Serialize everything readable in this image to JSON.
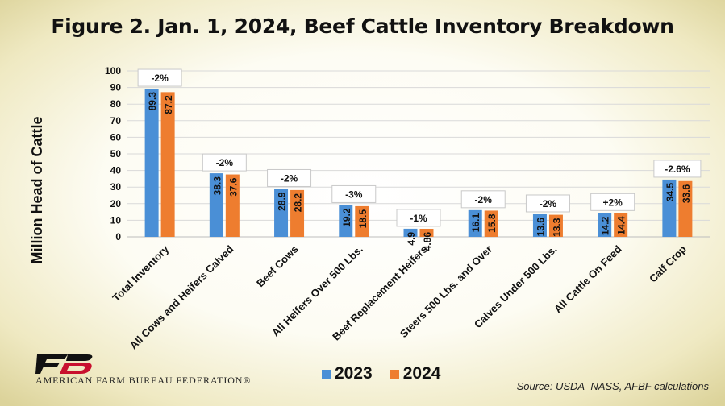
{
  "chart_data": {
    "type": "bar",
    "title": "Figure 2. Jan. 1, 2024, Beef Cattle Inventory Breakdown",
    "ylabel": "Million Head of Cattle",
    "xlabel": "",
    "ylim": [
      0,
      100
    ],
    "yticks": [
      0,
      10,
      20,
      30,
      40,
      50,
      60,
      70,
      80,
      90,
      100
    ],
    "grid": true,
    "legend_position": "bottom",
    "categories": [
      "Total Inventory",
      "All Cows and Heifers Calved",
      "Beef Cows",
      "All Heifers Over 500 Lbs.",
      "Beef Replacement Heifers",
      "Steers 500 Lbs. and Over",
      "Calves Under 500 Lbs.",
      "All Cattle On Feed",
      "Calf Crop"
    ],
    "series": [
      {
        "name": "2023",
        "color": "#4a8fd6",
        "values": [
          89.3,
          38.3,
          28.9,
          19.2,
          4.9,
          16.1,
          13.6,
          14.2,
          34.5
        ],
        "labels": [
          "89.3",
          "38.3",
          "28.9",
          "19.2",
          "4.9",
          "16.1",
          "13.6",
          "14.2",
          "34.5"
        ]
      },
      {
        "name": "2024",
        "color": "#ee7d2f",
        "values": [
          87.2,
          37.6,
          28.2,
          18.5,
          4.86,
          15.8,
          13.3,
          14.4,
          33.6
        ],
        "labels": [
          "87.2",
          "37.6",
          "28.2",
          "18.5",
          "4.86",
          "15.8",
          "13.3",
          "14.4",
          "33.6"
        ]
      }
    ],
    "change_labels": [
      "-2%",
      "-2%",
      "-2%",
      "-3%",
      "-1%",
      "-2%",
      "-2%",
      "+2%",
      "-2.6%"
    ],
    "source": "Source: USDA–NASS, AFBF calculations"
  },
  "logo": {
    "text": "AMERICAN FARM BUREAU FEDERATION®",
    "mark": "FB"
  }
}
